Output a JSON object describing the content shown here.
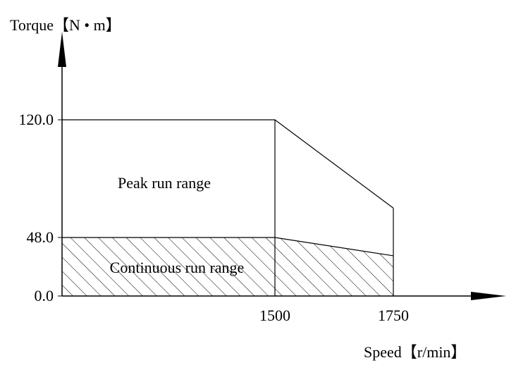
{
  "chart_data": {
    "type": "area",
    "xlabel": "Speed【r/min】",
    "ylabel": "Torque【N • m】",
    "x": [
      0,
      1500,
      1750
    ],
    "series": [
      {
        "name": "Peak run range",
        "values": [
          120,
          120,
          66
        ],
        "color": "#000000"
      },
      {
        "name": "Continuous run range",
        "values": [
          48,
          48,
          33
        ],
        "color": "#000000",
        "hatch": true
      }
    ],
    "xlim": [
      0,
      2000
    ],
    "ylim": [
      0,
      175
    ],
    "xticks": [
      1500,
      1750
    ],
    "yticks": [
      {
        "value": 0,
        "label": "0.0"
      },
      {
        "value": 48,
        "label": "48.0"
      },
      {
        "value": 120,
        "label": "120.0"
      }
    ]
  }
}
